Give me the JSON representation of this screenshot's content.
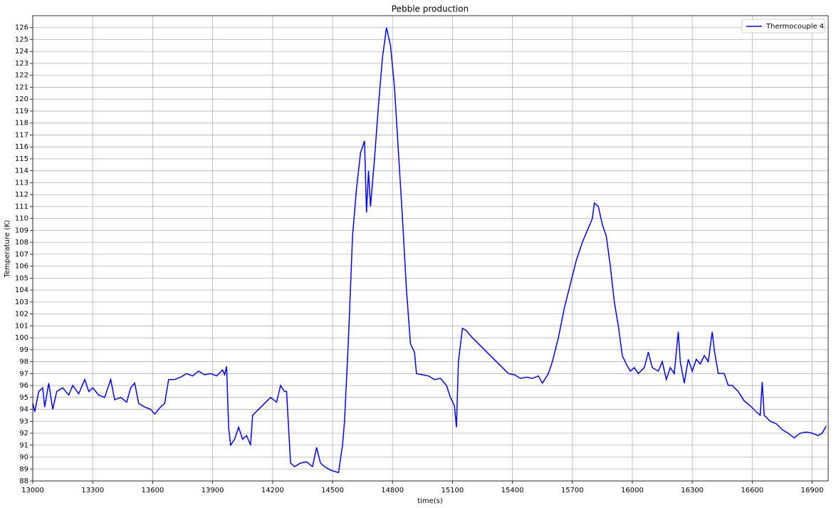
{
  "chart_data": {
    "type": "line",
    "title": "Pebble production",
    "x_label": "time(s)",
    "y_label": "Temperature (K)",
    "xlim": [
      13000,
      16980
    ],
    "ylim": [
      88,
      127
    ],
    "xticks": [
      13000,
      13300,
      13600,
      13900,
      14200,
      14500,
      14800,
      15100,
      15400,
      15700,
      16000,
      16300,
      16600,
      16900
    ],
    "yticks": [
      88,
      89,
      90,
      91,
      92,
      93,
      94,
      95,
      96,
      97,
      98,
      99,
      100,
      101,
      102,
      103,
      104,
      105,
      106,
      107,
      108,
      109,
      110,
      111,
      112,
      113,
      114,
      115,
      116,
      117,
      118,
      119,
      120,
      121,
      122,
      123,
      124,
      125,
      126
    ],
    "grid": true,
    "legend": "upper right",
    "x": [
      13000,
      13010,
      13030,
      13050,
      13060,
      13080,
      13100,
      13120,
      13150,
      13180,
      13200,
      13230,
      13260,
      13280,
      13300,
      13330,
      13360,
      13390,
      13410,
      13440,
      13470,
      13490,
      13510,
      13530,
      13560,
      13590,
      13610,
      13640,
      13660,
      13680,
      13710,
      13740,
      13770,
      13800,
      13830,
      13860,
      13890,
      13920,
      13950,
      13960,
      13970,
      13980,
      13990,
      14010,
      14030,
      14050,
      14070,
      14090,
      14100,
      14130,
      14160,
      14190,
      14220,
      14240,
      14260,
      14270,
      14290,
      14310,
      14340,
      14370,
      14400,
      14420,
      14440,
      14460,
      14490,
      14510,
      14530,
      14550,
      14560,
      14580,
      14600,
      14620,
      14640,
      14660,
      14670,
      14680,
      14690,
      14710,
      14730,
      14750,
      14770,
      14790,
      14810,
      14830,
      14850,
      14870,
      14890,
      14910,
      14920,
      14950,
      14980,
      15010,
      15040,
      15070,
      15090,
      15110,
      15120,
      15130,
      15150,
      15170,
      15200,
      15230,
      15260,
      15290,
      15320,
      15350,
      15380,
      15410,
      15440,
      15470,
      15500,
      15530,
      15550,
      15580,
      15600,
      15630,
      15660,
      15690,
      15720,
      15750,
      15780,
      15800,
      15810,
      15830,
      15850,
      15870,
      15890,
      15910,
      15930,
      15950,
      15970,
      15990,
      16010,
      16030,
      16060,
      16080,
      16100,
      16130,
      16150,
      16170,
      16190,
      16210,
      16230,
      16240,
      16260,
      16280,
      16300,
      16320,
      16340,
      16360,
      16380,
      16400,
      16410,
      16430,
      16460,
      16480,
      16500,
      16530,
      16560,
      16590,
      16620,
      16640,
      16650,
      16660,
      16690,
      16720,
      16750,
      16780,
      16810,
      16840,
      16870,
      16900,
      16930,
      16950,
      16970
    ],
    "series": [
      {
        "name": "Thermocouple 4",
        "color": "#0000ff",
        "values": [
          94.5,
          93.8,
          95.5,
          95.8,
          94.2,
          96.2,
          94.0,
          95.5,
          95.8,
          95.2,
          96.0,
          95.3,
          96.5,
          95.5,
          95.8,
          95.2,
          95.0,
          96.5,
          94.8,
          95.0,
          94.6,
          95.8,
          96.2,
          94.5,
          94.2,
          94.0,
          93.6,
          94.2,
          94.5,
          96.5,
          96.5,
          96.7,
          97.0,
          96.8,
          97.2,
          96.9,
          97.0,
          96.8,
          97.3,
          96.9,
          97.6,
          92.5,
          91.0,
          91.5,
          92.5,
          91.5,
          91.8,
          91.0,
          93.5,
          94.0,
          94.5,
          95.0,
          94.6,
          96.0,
          95.5,
          95.5,
          89.5,
          89.2,
          89.5,
          89.6,
          89.2,
          90.8,
          89.5,
          89.2,
          88.9,
          88.8,
          88.7,
          91.0,
          93.0,
          100,
          108.5,
          112.5,
          115.5,
          116.5,
          110.5,
          114,
          111,
          115,
          119.5,
          123.5,
          126.0,
          124.5,
          121,
          115.5,
          110,
          104,
          99.5,
          98.8,
          97.0,
          96.9,
          96.8,
          96.5,
          96.6,
          96.0,
          95.0,
          94.3,
          92.5,
          98.0,
          100.8,
          100.6,
          100.0,
          99.5,
          99.0,
          98.5,
          98.0,
          97.5,
          97.0,
          96.9,
          96.6,
          96.7,
          96.6,
          96.8,
          96.2,
          97.0,
          98.0,
          100.0,
          102.5,
          104.5,
          106.5,
          108.0,
          109.2,
          110.0,
          111.3,
          111.0,
          109.5,
          108.5,
          106.0,
          103.0,
          101.0,
          98.5,
          97.8,
          97.2,
          97.5,
          97.0,
          97.5,
          98.8,
          97.5,
          97.2,
          98.0,
          96.5,
          97.5,
          97.0,
          100.5,
          98.0,
          96.2,
          98.2,
          97.2,
          98.2,
          97.8,
          98.5,
          98.0,
          100.5,
          99.0,
          97.0,
          97.0,
          96.0,
          96.0,
          95.5,
          94.7,
          94.3,
          93.8,
          93.5,
          96.3,
          93.5,
          93.0,
          92.8,
          92.3,
          92.0,
          91.6,
          92.0,
          92.1,
          92.0,
          91.8,
          92.0,
          92.6
        ]
      }
    ]
  }
}
